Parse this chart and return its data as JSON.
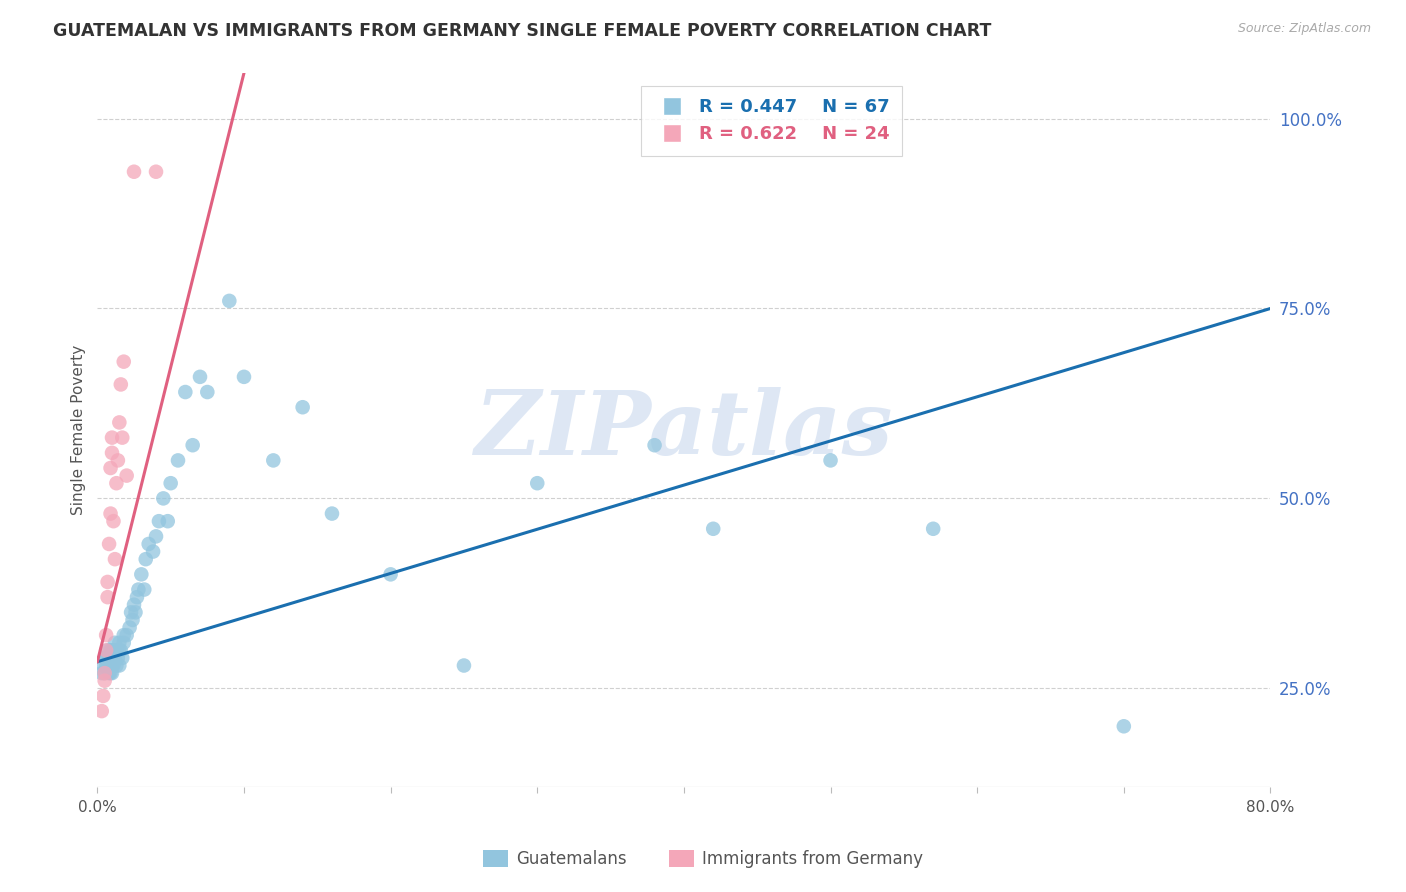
{
  "title": "GUATEMALAN VS IMMIGRANTS FROM GERMANY SINGLE FEMALE POVERTY CORRELATION CHART",
  "source": "Source: ZipAtlas.com",
  "ylabel": "Single Female Poverty",
  "ytick_labels": [
    "25.0%",
    "50.0%",
    "75.0%",
    "100.0%"
  ],
  "ytick_values": [
    0.25,
    0.5,
    0.75,
    1.0
  ],
  "xmin": 0.0,
  "xmax": 0.8,
  "ymin": 0.12,
  "ymax": 1.06,
  "blue_R": "0.447",
  "blue_N": "67",
  "pink_R": "0.622",
  "pink_N": "24",
  "legend1": "Guatemalans",
  "legend2": "Immigrants from Germany",
  "blue_color": "#92c5de",
  "pink_color": "#f4a7b9",
  "blue_line_color": "#1a6faf",
  "pink_line_color": "#e06080",
  "watermark_color": "#c8d8ee",
  "blue_line_x0": 0.0,
  "blue_line_y0": 0.285,
  "blue_line_x1": 0.8,
  "blue_line_y1": 0.75,
  "pink_line_x0": 0.0,
  "pink_line_x1": 0.1,
  "pink_line_y0": 0.285,
  "pink_line_y1": 1.06,
  "blue_points_x": [
    0.003,
    0.004,
    0.005,
    0.005,
    0.006,
    0.006,
    0.007,
    0.007,
    0.008,
    0.008,
    0.009,
    0.009,
    0.009,
    0.01,
    0.01,
    0.01,
    0.01,
    0.011,
    0.011,
    0.012,
    0.012,
    0.013,
    0.013,
    0.014,
    0.015,
    0.015,
    0.015,
    0.016,
    0.017,
    0.018,
    0.018,
    0.02,
    0.022,
    0.023,
    0.024,
    0.025,
    0.026,
    0.027,
    0.028,
    0.03,
    0.032,
    0.033,
    0.035,
    0.038,
    0.04,
    0.042,
    0.045,
    0.048,
    0.05,
    0.055,
    0.06,
    0.065,
    0.07,
    0.075,
    0.09,
    0.1,
    0.12,
    0.14,
    0.16,
    0.2,
    0.25,
    0.3,
    0.38,
    0.42,
    0.5,
    0.57,
    0.7
  ],
  "blue_points_y": [
    0.27,
    0.28,
    0.27,
    0.29,
    0.28,
    0.29,
    0.28,
    0.3,
    0.27,
    0.29,
    0.27,
    0.28,
    0.3,
    0.27,
    0.28,
    0.29,
    0.3,
    0.28,
    0.3,
    0.29,
    0.31,
    0.28,
    0.3,
    0.29,
    0.28,
    0.3,
    0.31,
    0.3,
    0.29,
    0.31,
    0.32,
    0.32,
    0.33,
    0.35,
    0.34,
    0.36,
    0.35,
    0.37,
    0.38,
    0.4,
    0.38,
    0.42,
    0.44,
    0.43,
    0.45,
    0.47,
    0.5,
    0.47,
    0.52,
    0.55,
    0.64,
    0.57,
    0.66,
    0.64,
    0.76,
    0.66,
    0.55,
    0.62,
    0.48,
    0.4,
    0.28,
    0.52,
    0.57,
    0.46,
    0.55,
    0.46,
    0.2
  ],
  "pink_points_x": [
    0.003,
    0.004,
    0.005,
    0.005,
    0.006,
    0.006,
    0.007,
    0.007,
    0.008,
    0.009,
    0.009,
    0.01,
    0.01,
    0.011,
    0.012,
    0.013,
    0.014,
    0.015,
    0.016,
    0.017,
    0.018,
    0.02,
    0.025,
    0.04
  ],
  "pink_points_y": [
    0.22,
    0.24,
    0.26,
    0.27,
    0.3,
    0.32,
    0.37,
    0.39,
    0.44,
    0.48,
    0.54,
    0.56,
    0.58,
    0.47,
    0.42,
    0.52,
    0.55,
    0.6,
    0.65,
    0.58,
    0.68,
    0.53,
    0.93,
    0.93
  ]
}
